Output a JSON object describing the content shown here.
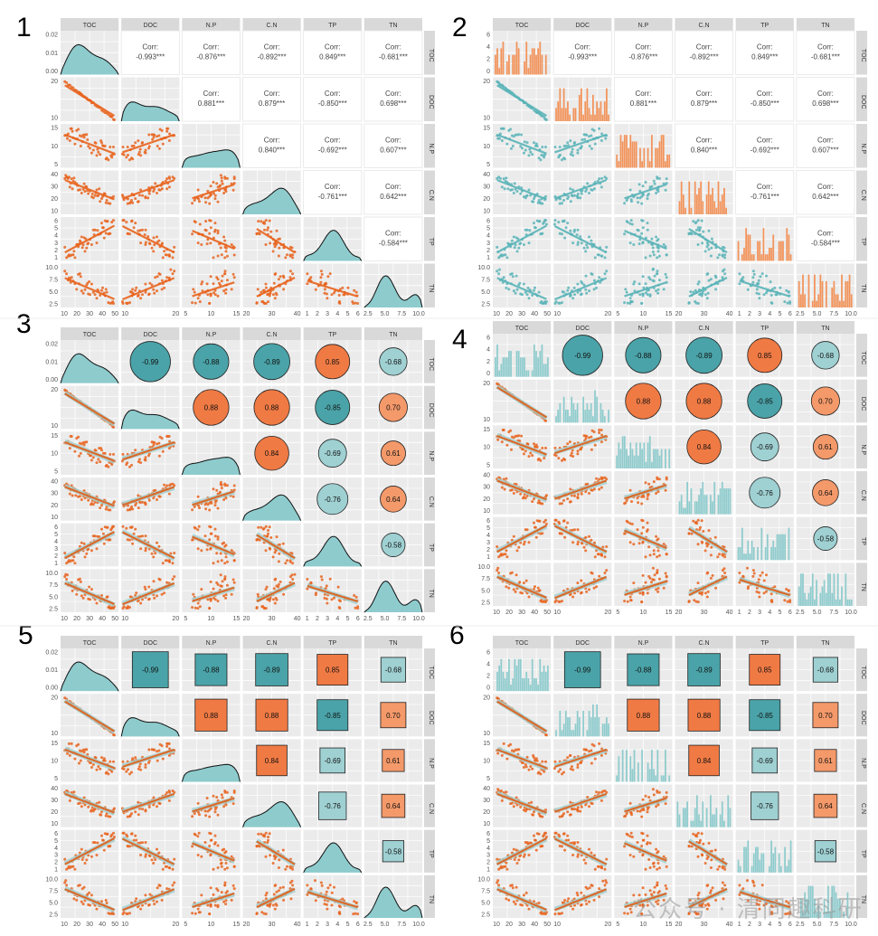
{
  "figure": {
    "watermark": "公众号 · 清同趣科研",
    "panel_numbers": [
      "1",
      "2",
      "3",
      "4",
      "5",
      "6"
    ]
  },
  "chart_data": {
    "type": "pairs-matrix",
    "variables": [
      "TOC",
      "DOC",
      "N.P",
      "C.N",
      "TP",
      "TN"
    ],
    "colors": {
      "teal": "#5ab4b8",
      "teal_dark": "#4aa3a8",
      "orange": "#e8641e",
      "orange_light": "#f4996a",
      "strip": "#d9d9d9",
      "panel_bg": "#ebebeb",
      "grid": "#ffffff"
    },
    "correlations": {
      "rows": [
        [
          null,
          -0.993,
          -0.876,
          -0.892,
          0.849,
          -0.681
        ],
        [
          null,
          null,
          0.881,
          0.879,
          -0.85,
          0.698
        ],
        [
          null,
          null,
          null,
          0.84,
          -0.692,
          0.607
        ],
        [
          null,
          null,
          null,
          null,
          -0.761,
          0.642
        ],
        [
          null,
          null,
          null,
          null,
          null,
          -0.584
        ]
      ],
      "text_labels": [
        [
          "",
          "Corr:\n-0.993***",
          "Corr:\n-0.876***",
          "Corr:\n-0.892***",
          "Corr:\n0.849***",
          "Corr:\n-0.681***"
        ],
        [
          "",
          "",
          "Corr:\n0.881***",
          "Corr:\n0.879***",
          "Corr:\n-0.850***",
          "Corr:\n0.698***"
        ],
        [
          "",
          "",
          "",
          "Corr:\n0.840***",
          "Corr:\n-0.692***",
          "Corr:\n0.607***"
        ],
        [
          "",
          "",
          "",
          "",
          "Corr:\n-0.761***",
          "Corr:\n0.642***"
        ],
        [
          "",
          "",
          "",
          "",
          "",
          "Corr:\n-0.584***"
        ]
      ],
      "short_labels": [
        [
          "",
          "-0.99",
          "-0.88",
          "-0.89",
          "0.85",
          "-0.68"
        ],
        [
          "",
          "",
          "0.88",
          "0.88",
          "-0.85",
          "0.70"
        ],
        [
          "",
          "",
          "",
          "0.84",
          "-0.69",
          "0.61"
        ],
        [
          "",
          "",
          "",
          "",
          "-0.76",
          "0.64"
        ],
        [
          "",
          "",
          "",
          "",
          "",
          "-0.58"
        ]
      ]
    },
    "axis_ranges": {
      "TOC": [
        8,
        52
      ],
      "DOC": [
        2,
        32
      ],
      "N.P": [
        2,
        16
      ],
      "C.N": [
        10,
        45
      ],
      "TP": [
        0.8,
        6.2
      ],
      "TN": [
        1.5,
        10.5
      ]
    },
    "y_ticks": {
      "TOC_density": [
        "0.02",
        "0.01",
        "0.00"
      ],
      "TOC_count": [
        "6",
        "4",
        "2",
        "0"
      ],
      "DOC": [
        "20",
        "10"
      ],
      "N.P": [
        "15",
        "10",
        "5"
      ],
      "C.N": [
        "40",
        "30",
        "20",
        "10"
      ],
      "TP": [
        "6",
        "5",
        "4",
        "3",
        "2",
        "1"
      ],
      "TN": [
        "10.0",
        "7.5",
        "5.0",
        "2.5"
      ]
    },
    "x_ticks": {
      "TOC": [
        "10",
        "20",
        "30",
        "40",
        "50"
      ],
      "DOC": [
        "10",
        "20"
      ],
      "N.P": [
        "5",
        "10",
        "15"
      ],
      "C.N": [
        "20",
        "30",
        "40"
      ],
      "TP": [
        "1",
        "2",
        "3",
        "4",
        "5",
        "6"
      ],
      "TN": [
        "2.5",
        "5.0",
        "7.5",
        "10.0"
      ]
    },
    "panels": [
      {
        "number": "1",
        "diag": "density",
        "upper": "text",
        "lower": "points-smooth",
        "point_color": "orange"
      },
      {
        "number": "2",
        "diag": "histogram-orange",
        "upper": "text",
        "lower": "points-smooth",
        "point_color": "teal"
      },
      {
        "number": "3",
        "diag": "density",
        "upper": "circle",
        "lower": "points-lm",
        "point_color": "orange"
      },
      {
        "number": "4",
        "diag": "histogram-teal",
        "upper": "circle",
        "lower": "points-lm",
        "point_color": "orange"
      },
      {
        "number": "5",
        "diag": "density",
        "upper": "square",
        "lower": "points-lm",
        "point_color": "orange"
      },
      {
        "number": "6",
        "diag": "histogram-teal",
        "upper": "square",
        "lower": "points-lm",
        "point_color": "orange"
      }
    ]
  }
}
